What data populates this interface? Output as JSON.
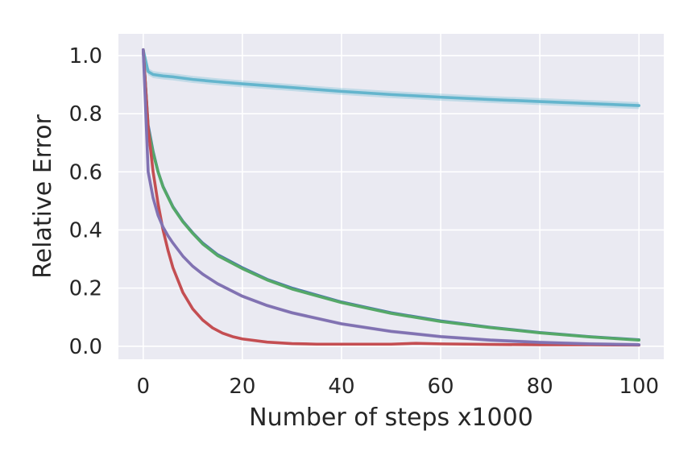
{
  "chart_data": {
    "type": "line",
    "title": "",
    "xlabel": "Number of steps x1000",
    "ylabel": "Relative Error",
    "xlim": [
      -5,
      105
    ],
    "ylim": [
      -0.045,
      1.075
    ],
    "xticks": [
      0,
      20,
      40,
      60,
      80,
      100
    ],
    "xtick_labels": [
      "0",
      "20",
      "40",
      "60",
      "80",
      "100"
    ],
    "yticks": [
      0.0,
      0.2,
      0.4,
      0.6,
      0.8,
      1.0
    ],
    "ytick_labels": [
      "0.0",
      "0.2",
      "0.4",
      "0.6",
      "0.8",
      "1.0"
    ],
    "grid": true,
    "background": "#eaeaf2",
    "gridcolor": "#ffffff",
    "series": [
      {
        "name": "cyan",
        "color": "#64b5cd",
        "band": 0.012,
        "x": [
          0,
          1,
          2,
          4,
          6,
          10,
          15,
          20,
          30,
          40,
          50,
          60,
          70,
          80,
          90,
          100
        ],
        "y": [
          1.02,
          0.945,
          0.935,
          0.93,
          0.927,
          0.918,
          0.91,
          0.903,
          0.89,
          0.877,
          0.866,
          0.857,
          0.849,
          0.842,
          0.835,
          0.828
        ]
      },
      {
        "name": "blue",
        "color": "#4c72b0",
        "band": 0.0,
        "x": [
          0,
          1,
          2,
          3,
          4,
          6,
          8,
          10,
          12,
          15,
          20,
          25,
          30,
          40,
          50,
          60,
          70,
          80,
          90,
          100
        ],
        "y": [
          1.02,
          0.76,
          0.67,
          0.6,
          0.55,
          0.48,
          0.43,
          0.39,
          0.355,
          0.315,
          0.27,
          0.23,
          0.2,
          0.152,
          0.115,
          0.087,
          0.065,
          0.047,
          0.033,
          0.022
        ]
      },
      {
        "name": "green",
        "color": "#55a868",
        "band": 0.0,
        "x": [
          0,
          1,
          2,
          3,
          4,
          6,
          8,
          10,
          12,
          15,
          20,
          25,
          30,
          40,
          50,
          60,
          70,
          80,
          90,
          100
        ],
        "y": [
          1.02,
          0.75,
          0.665,
          0.6,
          0.548,
          0.478,
          0.428,
          0.388,
          0.352,
          0.312,
          0.267,
          0.228,
          0.197,
          0.15,
          0.113,
          0.085,
          0.064,
          0.046,
          0.032,
          0.021
        ]
      },
      {
        "name": "red",
        "color": "#c44e52",
        "band": 0.0,
        "x": [
          0,
          1,
          2,
          3,
          4,
          5,
          6,
          8,
          10,
          12,
          14,
          16,
          18,
          20,
          25,
          30,
          35,
          40,
          50,
          55,
          60,
          70,
          80,
          90,
          100
        ],
        "y": [
          1.02,
          0.75,
          0.6,
          0.49,
          0.4,
          0.33,
          0.27,
          0.185,
          0.128,
          0.09,
          0.063,
          0.045,
          0.033,
          0.025,
          0.014,
          0.009,
          0.007,
          0.007,
          0.007,
          0.01,
          0.008,
          0.006,
          0.005,
          0.005,
          0.004
        ]
      },
      {
        "name": "purple",
        "color": "#8172b2",
        "band": 0.006,
        "x": [
          0,
          1,
          2,
          3,
          4,
          5,
          6,
          8,
          10,
          12,
          15,
          20,
          25,
          30,
          40,
          50,
          60,
          70,
          80,
          90,
          100
        ],
        "y": [
          1.02,
          0.6,
          0.51,
          0.45,
          0.41,
          0.38,
          0.355,
          0.31,
          0.275,
          0.248,
          0.215,
          0.172,
          0.14,
          0.115,
          0.077,
          0.051,
          0.033,
          0.021,
          0.013,
          0.008,
          0.005
        ]
      }
    ]
  }
}
